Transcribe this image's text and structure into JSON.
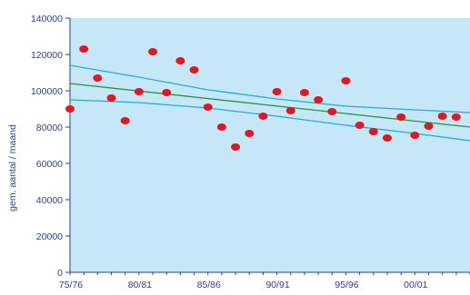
{
  "chart_data": {
    "type": "scatter",
    "title": "",
    "xlabel": "",
    "ylabel": "gem. aantal / maand",
    "ylim": [
      0,
      140000
    ],
    "y_ticks": [
      "0",
      "20000",
      "40000",
      "60000",
      "80000",
      "100000",
      "120000",
      "140000"
    ],
    "x_range": [
      1975,
      2004
    ],
    "x_tick_labels": [
      "75/76",
      "80/81",
      "85/86",
      "90/91",
      "95/96",
      "00/01"
    ],
    "x_tick_values": [
      1975,
      1980,
      1985,
      1990,
      1995,
      2000
    ],
    "plot_background": "#c6e7f8",
    "series": [
      {
        "kind": "points",
        "color": "#e8141e",
        "x": [
          1975,
          1976,
          1977,
          1978,
          1979,
          1980,
          1981,
          1982,
          1983,
          1984,
          1985,
          1986,
          1987,
          1988,
          1989,
          1990,
          1991,
          1992,
          1993,
          1994,
          1995,
          1996,
          1997,
          1998,
          1999,
          2000,
          2001,
          2002,
          2003
        ],
        "y": [
          90000,
          123000,
          107000,
          96000,
          83500,
          99500,
          121500,
          99000,
          116500,
          111500,
          91000,
          80000,
          69000,
          76500,
          86000,
          99500,
          89000,
          99000,
          95000,
          88500,
          105500,
          81000,
          77500,
          74000,
          85500,
          75500,
          80500,
          86000,
          85500
        ]
      },
      {
        "kind": "line",
        "color": "#1f9a3c",
        "x": [
          1975,
          2004
        ],
        "y": [
          104000,
          80000
        ]
      },
      {
        "kind": "line",
        "color": "#1ab0d8",
        "x": [
          1975,
          1980,
          1985,
          1990,
          1995,
          2000,
          2004
        ],
        "y": [
          114000,
          107500,
          100500,
          95500,
          91500,
          89500,
          88000
        ]
      },
      {
        "kind": "line",
        "color": "#1ab0d8",
        "x": [
          1975,
          1980,
          1985,
          1990,
          1995,
          2000,
          2004
        ],
        "y": [
          95000,
          93500,
          90500,
          86000,
          81000,
          76500,
          72500
        ]
      }
    ]
  }
}
